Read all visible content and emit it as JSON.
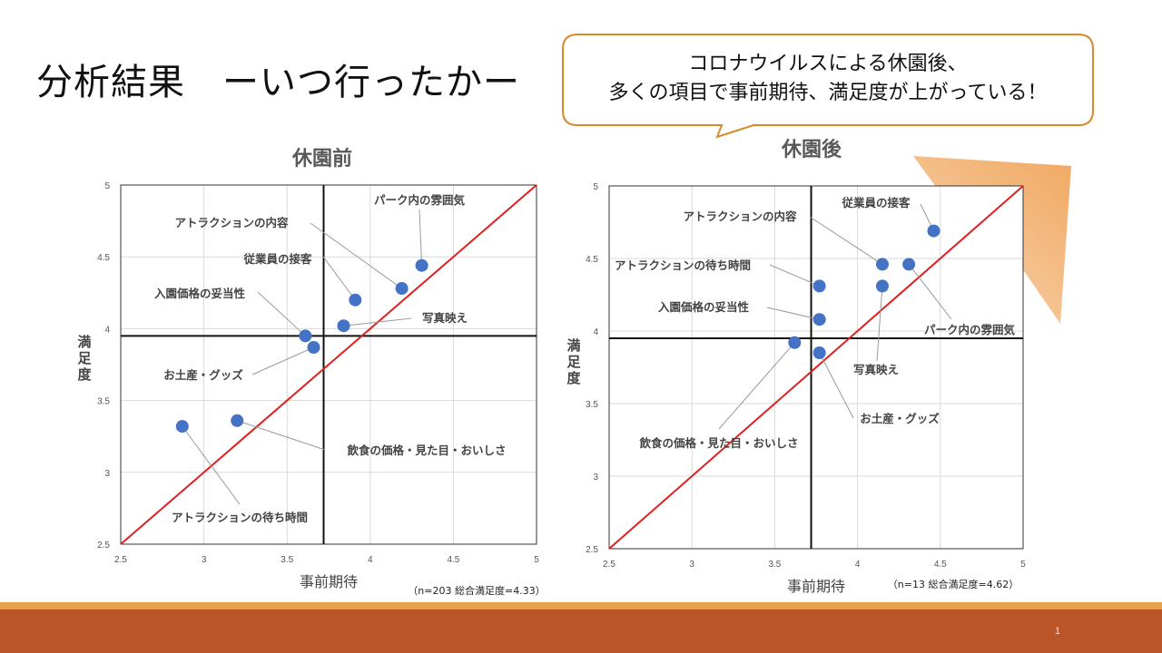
{
  "slide": {
    "title": "分析結果　ーいつ行ったかー",
    "page_number": "1"
  },
  "callout": {
    "line1": "コロナウイルスによる休園後、",
    "line2": "多くの項目で事前期待、満足度が上がっている！",
    "border_color": "#d88a2a"
  },
  "colors": {
    "point": "#4472c4",
    "diagonal": "#e02020",
    "arrow": "#f0a860",
    "footer": "#bb5527"
  },
  "chart_data": [
    {
      "type": "scatter",
      "title": "休園前",
      "xlabel": "事前期待",
      "ylabel": "満足度",
      "note": "（n=203 総合満足度=4.33）",
      "xlim": [
        2.5,
        5
      ],
      "ylim": [
        2.5,
        5
      ],
      "xticks": [
        "2.5",
        "3",
        "3.5",
        "4",
        "4.5",
        "5"
      ],
      "yticks": [
        "2.5",
        "3",
        "3.5",
        "4",
        "4.5",
        "5"
      ],
      "grid": true,
      "reference_lines": {
        "x": 3.72,
        "y": 3.95,
        "diagonal": true
      },
      "points": [
        {
          "label": "パーク内の雰囲気",
          "x": 4.31,
          "y": 4.44
        },
        {
          "label": "アトラクションの内容",
          "x": 4.19,
          "y": 4.28
        },
        {
          "label": "従業員の接客",
          "x": 3.91,
          "y": 4.2
        },
        {
          "label": "入園価格の妥当性",
          "x": 3.61,
          "y": 3.95
        },
        {
          "label": "写真映え",
          "x": 3.84,
          "y": 4.02
        },
        {
          "label": "お土産・グッズ",
          "x": 3.66,
          "y": 3.87
        },
        {
          "label": "飲食の価格・見た目・おいしさ",
          "x": 3.2,
          "y": 3.36
        },
        {
          "label": "アトラクションの待ち時間",
          "x": 2.87,
          "y": 3.32
        }
      ]
    },
    {
      "type": "scatter",
      "title": "休園後",
      "xlabel": "事前期待",
      "ylabel": "満足度",
      "note": "（n=13 総合満足度=4.62）",
      "xlim": [
        2.5,
        5
      ],
      "ylim": [
        2.5,
        5
      ],
      "xticks": [
        "2.5",
        "3",
        "3.5",
        "4",
        "4.5",
        "5"
      ],
      "yticks": [
        "2.5",
        "3",
        "3.5",
        "4",
        "4.5",
        "5"
      ],
      "grid": true,
      "reference_lines": {
        "x": 3.72,
        "y": 3.95,
        "diagonal": true
      },
      "points": [
        {
          "label": "従業員の接客",
          "x": 4.46,
          "y": 4.69
        },
        {
          "label": "アトラクションの内容",
          "x": 4.15,
          "y": 4.46
        },
        {
          "label": "パーク内の雰囲気",
          "x": 4.31,
          "y": 4.46
        },
        {
          "label": "アトラクションの待ち時間",
          "x": 3.77,
          "y": 4.31
        },
        {
          "label": "写真映え",
          "x": 4.15,
          "y": 4.31
        },
        {
          "label": "入園価格の妥当性",
          "x": 3.77,
          "y": 4.08
        },
        {
          "label": "飲食の価格・見た目・おいしさ",
          "x": 3.62,
          "y": 3.92
        },
        {
          "label": "お土産・グッズ",
          "x": 3.77,
          "y": 3.85
        }
      ]
    }
  ]
}
